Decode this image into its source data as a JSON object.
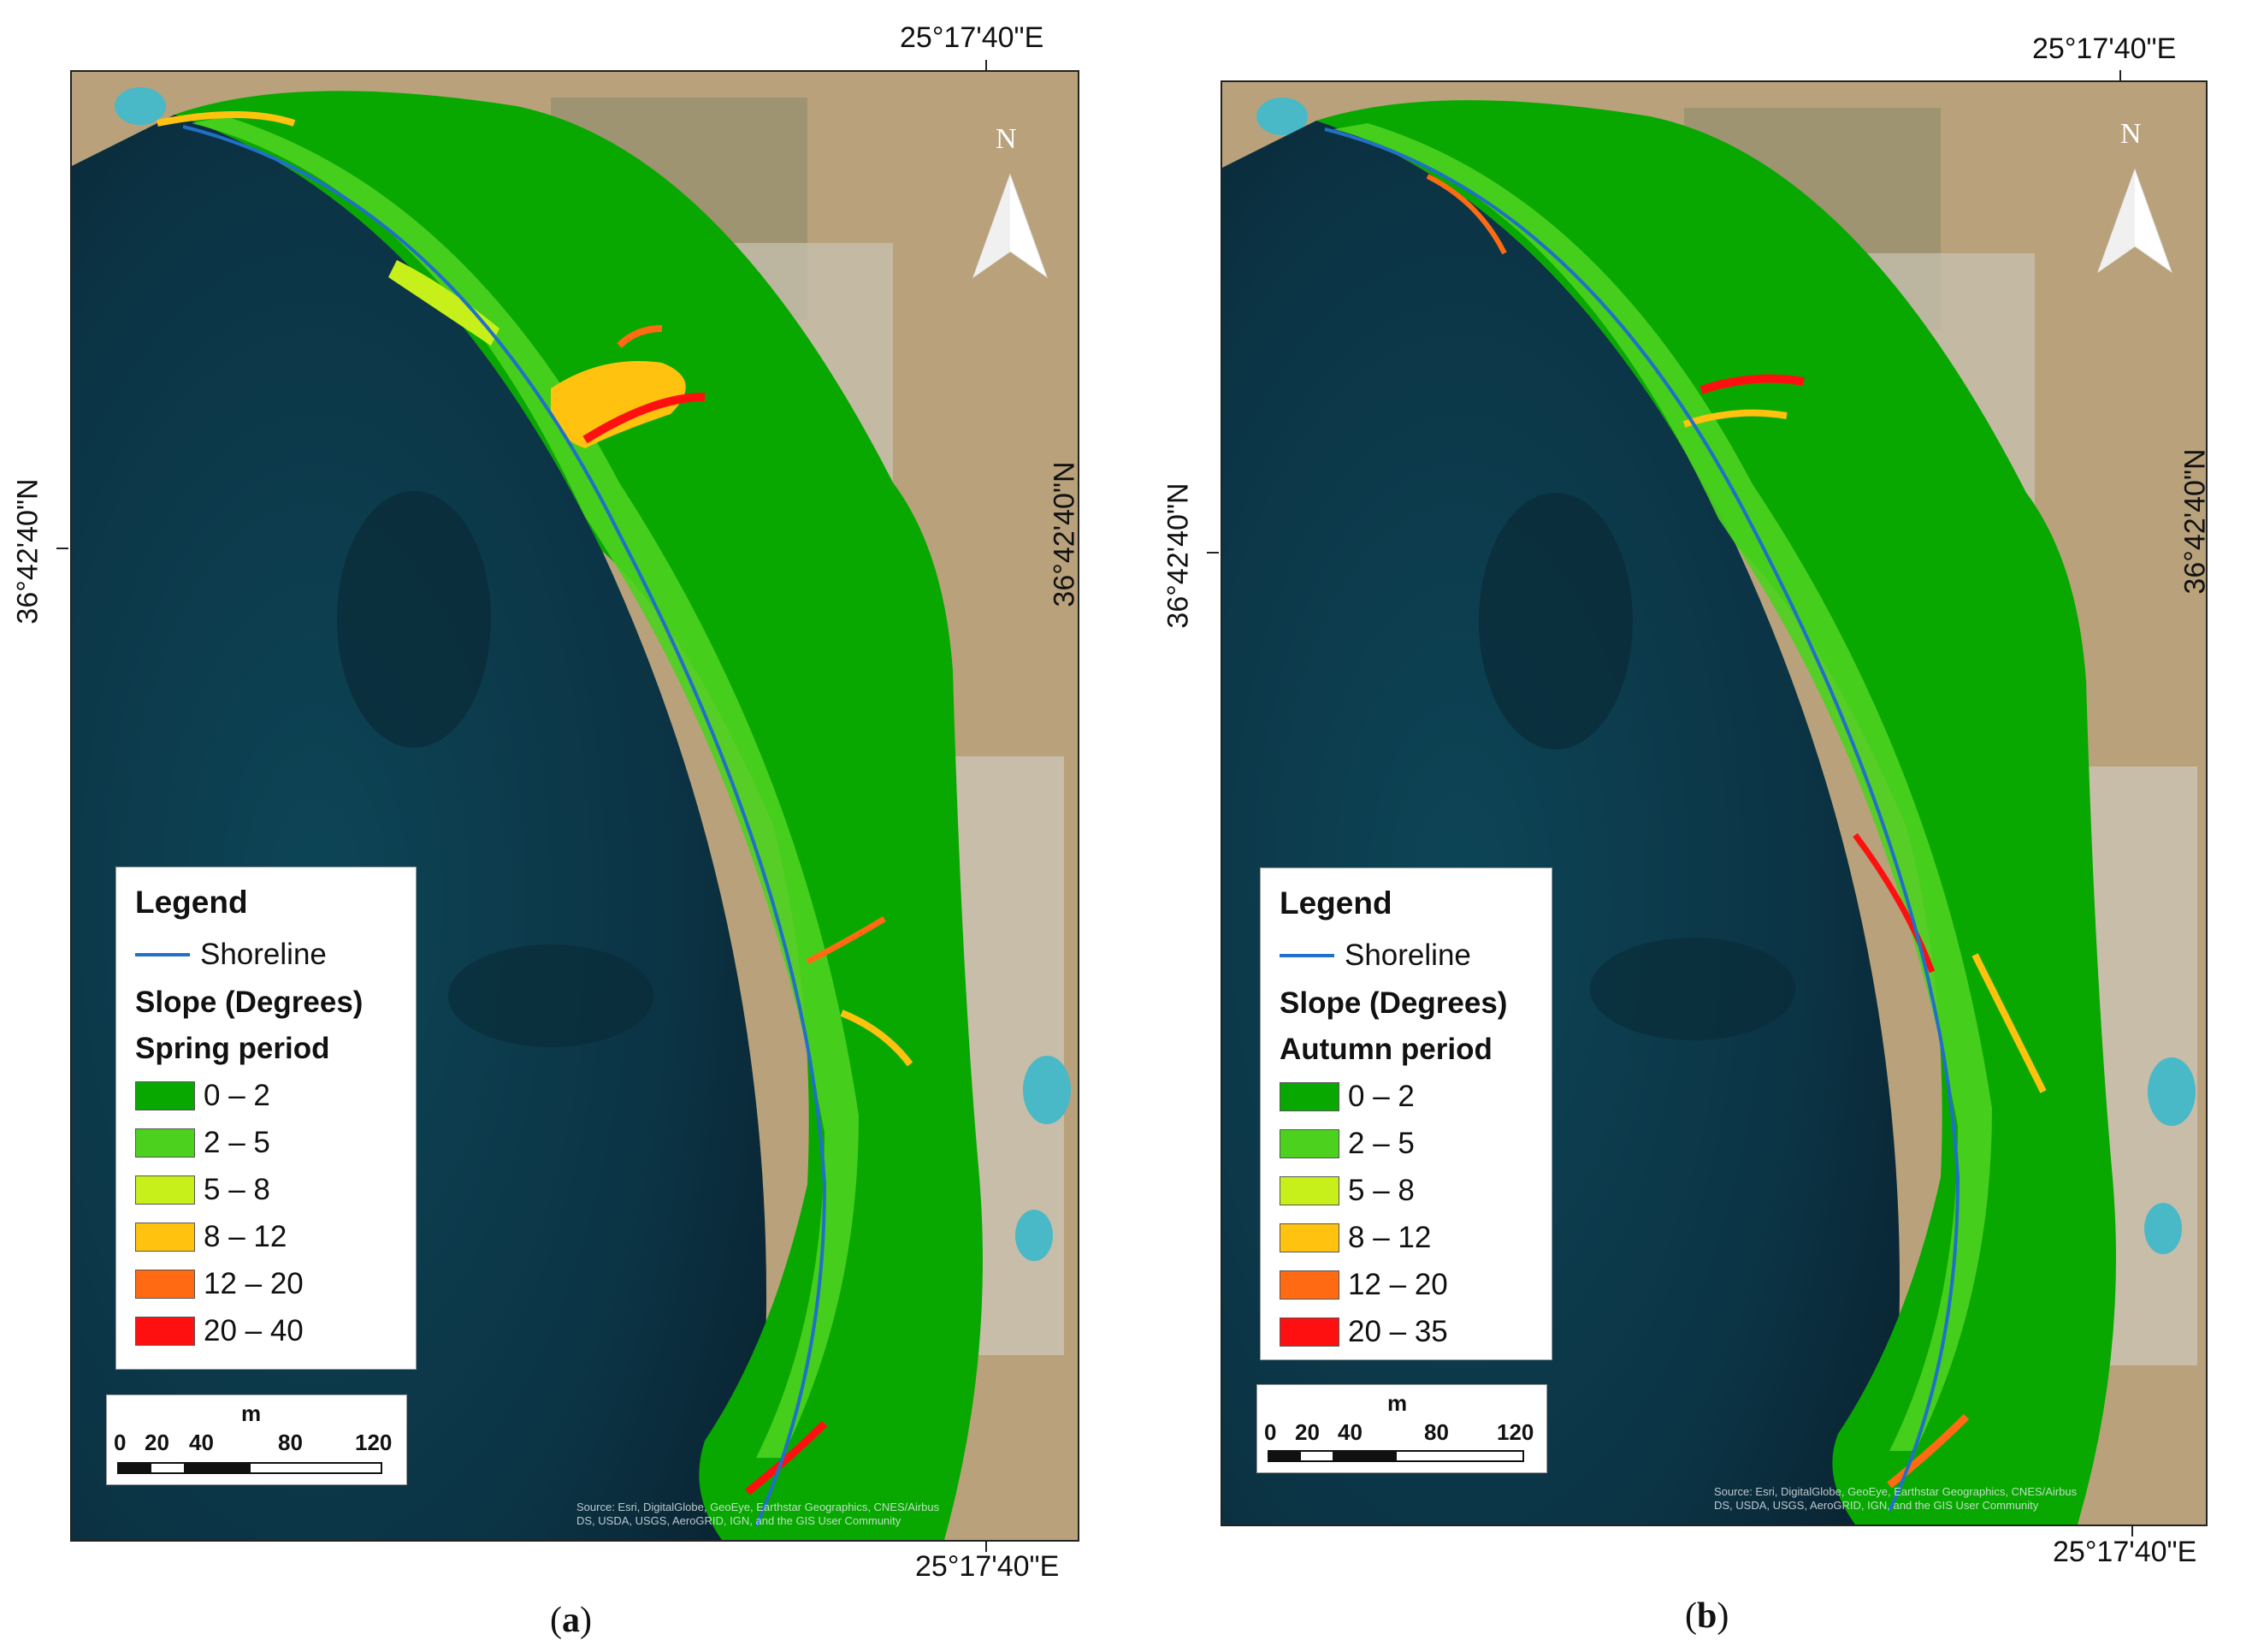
{
  "panels": [
    {
      "label_open": "(",
      "label_letter": "a",
      "label_close": ")",
      "top_lon": "25°17'40\"E",
      "bottom_lon": "25°17'40\"E",
      "left_lat": "36°42'40\"N",
      "right_lat": "36°42'40\"N",
      "north": "N",
      "legend": {
        "title": "Legend",
        "shoreline_label": "Shoreline",
        "slope_label": "Slope (Degrees)",
        "period_label": "Spring period",
        "classes": [
          {
            "label": "0 – 2",
            "color": "#08a800"
          },
          {
            "label": "2 – 5",
            "color": "#4cd11e"
          },
          {
            "label": "5 – 8",
            "color": "#c7f01a"
          },
          {
            "label": "8 – 12",
            "color": "#ffc20e"
          },
          {
            "label": "12 – 20",
            "color": "#ff6a12"
          },
          {
            "label": "20 – 40",
            "color": "#ff1010"
          }
        ]
      },
      "scale": {
        "unit": "m",
        "ticks": [
          "0",
          "20",
          "40",
          "80",
          "120"
        ]
      },
      "credit_line1": "Source: Esri, DigitalGlobe, GeoEye, Earthstar Geographics, CNES/Airbus",
      "credit_line2": "DS, USDA, USGS, AeroGRID, IGN, and the GIS User Community"
    },
    {
      "label_open": "(",
      "label_letter": "b",
      "label_close": ")",
      "top_lon": "25°17'40\"E",
      "bottom_lon": "25°17'40\"E",
      "left_lat": "36°42'40\"N",
      "right_lat": "36°42'40\"N",
      "north": "N",
      "legend": {
        "title": "Legend",
        "shoreline_label": "Shoreline",
        "slope_label": "Slope (Degrees)",
        "period_label": "Autumn period",
        "classes": [
          {
            "label": "0 – 2",
            "color": "#08a800"
          },
          {
            "label": "2 – 5",
            "color": "#4cd11e"
          },
          {
            "label": "5 – 8",
            "color": "#c7f01a"
          },
          {
            "label": "8 – 12",
            "color": "#ffc20e"
          },
          {
            "label": "12 – 20",
            "color": "#ff6a12"
          },
          {
            "label": "20 – 35",
            "color": "#ff1010"
          }
        ]
      },
      "scale": {
        "unit": "m",
        "ticks": [
          "0",
          "20",
          "40",
          "80",
          "120"
        ]
      },
      "credit_line1": "Source: Esri, DigitalGlobe, GeoEye, Earthstar Geographics, CNES/Airbus",
      "credit_line2": "DS, USDA, USGS, AeroGRID, IGN, and the GIS User Community"
    }
  ],
  "colors": {
    "sea": "#0c3a4c",
    "sea_deep": "#0a2634",
    "land": "#b8a27a",
    "shoreline": "#2070c8",
    "slope_base": "#08a800"
  }
}
